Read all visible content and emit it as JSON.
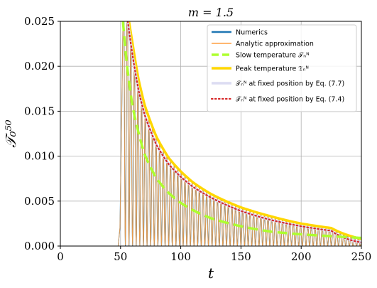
{
  "chart_data": {
    "type": "line",
    "title": "m = 1.5",
    "xlabel": "t",
    "ylabel": "𝒯₀⁵⁰",
    "xlim": [
      0,
      250
    ],
    "ylim": [
      0,
      0.025
    ],
    "x_ticks": [
      "0",
      "50",
      "100",
      "150",
      "200",
      "250"
    ],
    "y_ticks": [
      "0.000",
      "0.005",
      "0.010",
      "0.015",
      "0.020",
      "0.025"
    ],
    "grid": true,
    "legend_position": "top-right",
    "onset_time": 48,
    "oscillation_period": 3.0,
    "series": [
      {
        "name": "Numerics",
        "color": "#1f77b4",
        "style": "oscillating",
        "note_values": "rapid oscillation between 0 and the peak envelope, onset near t≈48"
      },
      {
        "name": "Analytic approximation",
        "color": "#ff9f40",
        "style": "oscillating"
      },
      {
        "name": "Slow temperature 𝒯ₙᴺ",
        "color": "#adff2f",
        "style": "dashed",
        "x": [
          52,
          55,
          60,
          70,
          80,
          90,
          100,
          110,
          125,
          150,
          175,
          200,
          225,
          250
        ],
        "y": [
          0.025,
          0.0205,
          0.0155,
          0.0102,
          0.0075,
          0.0059,
          0.0048,
          0.004,
          0.0031,
          0.0022,
          0.0016,
          0.0013,
          0.0011,
          0.0009
        ]
      },
      {
        "name": "Peak temperature 𝔗ₙᴺ",
        "color": "#ffd700",
        "style": "solid",
        "x": [
          57,
          60,
          65,
          70,
          80,
          90,
          100,
          110,
          125,
          150,
          175,
          200,
          225,
          250
        ],
        "y": [
          0.025,
          0.0225,
          0.0185,
          0.0157,
          0.0121,
          0.0098,
          0.0083,
          0.0071,
          0.0058,
          0.0043,
          0.0033,
          0.0025,
          0.002,
          0.0008
        ]
      },
      {
        "name": "𝒯ₙᴺ at fixed position by Eq. (7.7)",
        "color": "#dcdcf2",
        "style": "solid",
        "x": [
          56,
          60,
          65,
          70,
          80,
          90,
          100,
          110,
          125,
          150,
          175,
          200,
          225,
          250
        ],
        "y": [
          0.025,
          0.0212,
          0.0173,
          0.0146,
          0.0112,
          0.0091,
          0.0077,
          0.0066,
          0.0054,
          0.0039,
          0.0029,
          0.0022,
          0.0017,
          0.0004
        ]
      },
      {
        "name": "𝒯ₙᴺ at fixed position by Eq. (7.4)",
        "color": "#d62728",
        "style": "dotted",
        "x": [
          56,
          60,
          65,
          70,
          80,
          90,
          100,
          110,
          125,
          150,
          175,
          200,
          225,
          250
        ],
        "y": [
          0.025,
          0.0212,
          0.0173,
          0.0146,
          0.0112,
          0.0091,
          0.0077,
          0.0066,
          0.0054,
          0.0039,
          0.0029,
          0.0022,
          0.0017,
          0.0004
        ]
      }
    ]
  }
}
